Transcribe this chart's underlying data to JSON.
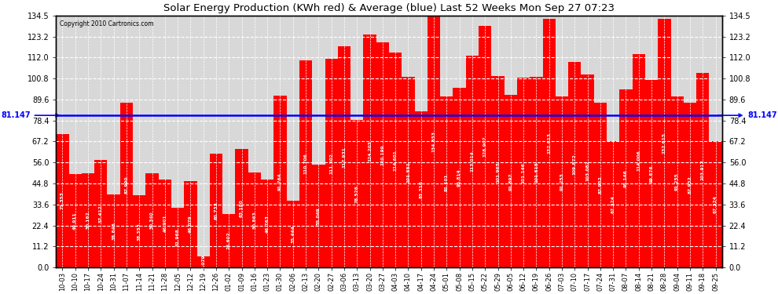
{
  "title": "Solar Energy Production (KWh red) & Average (blue) Last 52 Weeks Mon Sep 27 07:23",
  "copyright": "Copyright 2010 Cartronics.com",
  "average": 81.147,
  "bar_color": "#ff0000",
  "avg_line_color": "#0000ff",
  "background_color": "#ffffff",
  "plot_bg_color": "#d8d8d8",
  "ylim": [
    0,
    134.5
  ],
  "yticks": [
    0.0,
    11.2,
    22.4,
    33.6,
    44.8,
    56.0,
    67.2,
    78.4,
    89.6,
    100.8,
    112.0,
    123.2,
    134.5
  ],
  "labels": [
    "10-03",
    "10-10",
    "10-17",
    "10-24",
    "10-31",
    "11-07",
    "11-14",
    "11-21",
    "11-28",
    "12-05",
    "12-12",
    "12-19",
    "12-26",
    "01-02",
    "01-09",
    "01-16",
    "01-23",
    "01-30",
    "02-06",
    "02-13",
    "02-20",
    "02-27",
    "03-06",
    "03-13",
    "03-20",
    "03-27",
    "04-03",
    "04-10",
    "04-17",
    "04-24",
    "05-01",
    "05-08",
    "05-15",
    "05-22",
    "05-29",
    "06-05",
    "06-12",
    "06-19",
    "06-26",
    "07-03",
    "07-10",
    "07-17",
    "07-24",
    "07-31",
    "08-07",
    "08-14",
    "08-21",
    "08-28",
    "09-04",
    "09-11",
    "09-18",
    "09-25"
  ],
  "values": [
    71.353,
    49.911,
    50.162,
    57.412,
    38.846,
    87.99,
    38.353,
    50.34,
    46.901,
    31.968,
    46.079,
    6.079,
    60.733,
    28.602,
    63.18,
    50.863,
    46.763,
    91.764,
    35.444,
    110.706,
    55.049,
    111.302,
    117.931,
    78.526,
    124.203,
    120.199,
    114.601,
    101.551,
    83.316,
    134.353,
    91.101,
    95.814,
    113.014,
    128.907,
    101.965,
    91.897,
    101.146,
    101.615,
    132.613,
    91.253,
    109.872,
    103.082,
    87.932,
    67.324,
    95.146,
    114.006,
    99.876,
    132.615,
    91.255,
    87.932,
    103.912,
    67.324
  ]
}
